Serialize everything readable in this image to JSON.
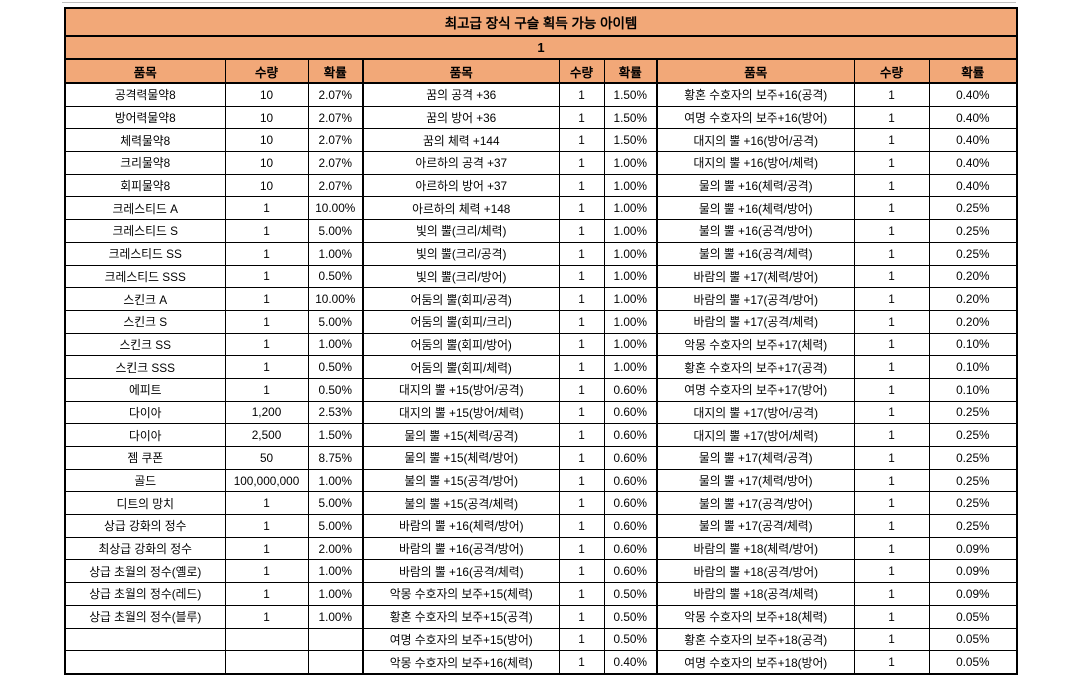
{
  "colors": {
    "header_bg": "#F2A878",
    "border": "#000000",
    "text": "#000000",
    "top_rule": "#c0c0c0"
  },
  "table": {
    "title": "최고급 장식 구슬 획득 가능 아이템",
    "group_label": "1",
    "column_headers": [
      "품목",
      "수량",
      "확률"
    ],
    "rows": [
      [
        "공격력물약8",
        "10",
        "2.07%",
        "꿈의 공격 +36",
        "1",
        "1.50%",
        "황혼 수호자의 보주+16(공격)",
        "1",
        "0.40%"
      ],
      [
        "방어력물약8",
        "10",
        "2.07%",
        "꿈의 방어 +36",
        "1",
        "1.50%",
        "여명 수호자의 보주+16(방어)",
        "1",
        "0.40%"
      ],
      [
        "체력물약8",
        "10",
        "2.07%",
        "꿈의 체력 +144",
        "1",
        "1.50%",
        "대지의 뿔 +16(방어/공격)",
        "1",
        "0.40%"
      ],
      [
        "크리물약8",
        "10",
        "2.07%",
        "아르하의 공격 +37",
        "1",
        "1.00%",
        "대지의 뿔 +16(방어/체력)",
        "1",
        "0.40%"
      ],
      [
        "회피물약8",
        "10",
        "2.07%",
        "아르하의 방어 +37",
        "1",
        "1.00%",
        "물의 뿔 +16(체력/공격)",
        "1",
        "0.40%"
      ],
      [
        "크레스티드 A",
        "1",
        "10.00%",
        "아르하의 체력 +148",
        "1",
        "1.00%",
        "물의 뿔 +16(체력/방어)",
        "1",
        "0.25%"
      ],
      [
        "크레스티드 S",
        "1",
        "5.00%",
        "빛의 뿔(크리/체력)",
        "1",
        "1.00%",
        "불의 뿔 +16(공격/방어)",
        "1",
        "0.25%"
      ],
      [
        "크레스티드 SS",
        "1",
        "1.00%",
        "빛의 뿔(크리/공격)",
        "1",
        "1.00%",
        "불의 뿔 +16(공격/체력)",
        "1",
        "0.25%"
      ],
      [
        "크레스티드 SSS",
        "1",
        "0.50%",
        "빛의 뿔(크리/방어)",
        "1",
        "1.00%",
        "바람의 뿔 +17(체력/방어)",
        "1",
        "0.20%"
      ],
      [
        "스킨크 A",
        "1",
        "10.00%",
        "어둠의 뿔(회피/공격)",
        "1",
        "1.00%",
        "바람의 뿔 +17(공격/방어)",
        "1",
        "0.20%"
      ],
      [
        "스킨크 S",
        "1",
        "5.00%",
        "어둠의 뿔(회피/크리)",
        "1",
        "1.00%",
        "바람의 뿔 +17(공격/체력)",
        "1",
        "0.20%"
      ],
      [
        "스킨크 SS",
        "1",
        "1.00%",
        "어둠의 뿔(회피/방어)",
        "1",
        "1.00%",
        "악몽 수호자의 보주+17(체력)",
        "1",
        "0.10%"
      ],
      [
        "스킨크 SSS",
        "1",
        "0.50%",
        "어둠의 뿔(회피/체력)",
        "1",
        "1.00%",
        "황혼 수호자의 보주+17(공격)",
        "1",
        "0.10%"
      ],
      [
        "에피트",
        "1",
        "0.50%",
        "대지의 뿔 +15(방어/공격)",
        "1",
        "0.60%",
        "여명 수호자의 보주+17(방어)",
        "1",
        "0.10%"
      ],
      [
        "다이아",
        "1,200",
        "2.53%",
        "대지의 뿔 +15(방어/체력)",
        "1",
        "0.60%",
        "대지의 뿔 +17(방어/공격)",
        "1",
        "0.25%"
      ],
      [
        "다이아",
        "2,500",
        "1.50%",
        "물의 뿔 +15(체력/공격)",
        "1",
        "0.60%",
        "대지의 뿔 +17(방어/체력)",
        "1",
        "0.25%"
      ],
      [
        "젬 쿠폰",
        "50",
        "8.75%",
        "물의 뿔 +15(체력/방어)",
        "1",
        "0.60%",
        "물의 뿔 +17(체력/공격)",
        "1",
        "0.25%"
      ],
      [
        "골드",
        "100,000,000",
        "1.00%",
        "불의 뿔 +15(공격/방어)",
        "1",
        "0.60%",
        "물의 뿔 +17(체력/방어)",
        "1",
        "0.25%"
      ],
      [
        "디트의 망치",
        "1",
        "5.00%",
        "불의 뿔 +15(공격/체력)",
        "1",
        "0.60%",
        "불의 뿔 +17(공격/방어)",
        "1",
        "0.25%"
      ],
      [
        "상급 강화의 정수",
        "1",
        "5.00%",
        "바람의 뿔 +16(체력/방어)",
        "1",
        "0.60%",
        "불의 뿔 +17(공격/체력)",
        "1",
        "0.25%"
      ],
      [
        "최상급 강화의 정수",
        "1",
        "2.00%",
        "바람의 뿔 +16(공격/방어)",
        "1",
        "0.60%",
        "바람의 뿔 +18(체력/방어)",
        "1",
        "0.09%"
      ],
      [
        "상급 초월의 정수(옐로)",
        "1",
        "1.00%",
        "바람의 뿔 +16(공격/체력)",
        "1",
        "0.60%",
        "바람의 뿔 +18(공격/방어)",
        "1",
        "0.09%"
      ],
      [
        "상급 초월의 정수(레드)",
        "1",
        "1.00%",
        "악몽 수호자의 보주+15(체력)",
        "1",
        "0.50%",
        "바람의 뿔 +18(공격/체력)",
        "1",
        "0.09%"
      ],
      [
        "상급 초월의 정수(블루)",
        "1",
        "1.00%",
        "황혼 수호자의 보주+15(공격)",
        "1",
        "0.50%",
        "악몽 수호자의 보주+18(체력)",
        "1",
        "0.05%"
      ],
      [
        "",
        "",
        "",
        "여명 수호자의 보주+15(방어)",
        "1",
        "0.50%",
        "황혼 수호자의 보주+18(공격)",
        "1",
        "0.05%"
      ],
      [
        "",
        "",
        "",
        "악몽 수호자의 보주+16(체력)",
        "1",
        "0.40%",
        "여명 수호자의 보주+18(방어)",
        "1",
        "0.05%"
      ]
    ]
  }
}
